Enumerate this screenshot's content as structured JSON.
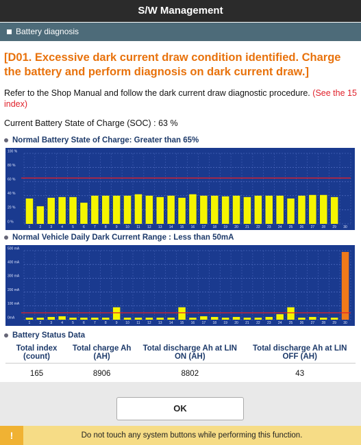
{
  "header": {
    "title": "S/W Management"
  },
  "section": {
    "title": "Battery diagnosis"
  },
  "alert": "[D01. Excessive dark current draw condition identified. Charge the battery and perform diagnosis on dark current draw.]",
  "instruction": {
    "text": "Refer to the Shop Manual and follow the dark current draw diagnostic procedure.",
    "link": "(See the 15 index)"
  },
  "soc": "Current Battery State of Charge (SOC) : 63 %",
  "chart_data": [
    {
      "type": "bar",
      "title": "Normal Battery State of Charge: Greater than 65%",
      "categories": [
        "1",
        "2",
        "3",
        "4",
        "5",
        "6",
        "7",
        "8",
        "9",
        "10",
        "11",
        "12",
        "13",
        "14",
        "15",
        "16",
        "17",
        "18",
        "19",
        "20",
        "21",
        "22",
        "23",
        "24",
        "25",
        "26",
        "27",
        "28",
        "29",
        "30"
      ],
      "values": [
        36,
        25,
        37,
        38,
        38,
        30,
        40,
        40,
        40,
        40,
        42,
        40,
        38,
        40,
        37,
        42,
        40,
        40,
        39,
        40,
        38,
        40,
        40,
        40,
        36,
        40,
        41,
        41,
        38,
        0
      ],
      "color": "#f5f500",
      "ylim": [
        0,
        100
      ],
      "yticks": [
        {
          "value": 0,
          "label": "0 %"
        },
        {
          "value": 20,
          "label": "20 %"
        },
        {
          "value": 40,
          "label": "40 %"
        },
        {
          "value": 60,
          "label": "60 %"
        },
        {
          "value": 80,
          "label": "80 %"
        },
        {
          "value": 100,
          "label": "100 %"
        }
      ],
      "threshold": 65,
      "threshold_color": "#e0202a",
      "grid": true
    },
    {
      "type": "bar",
      "title": "Normal Vehicle Daily Dark Current Range : Less than 50mA",
      "categories": [
        "1",
        "2",
        "3",
        "4",
        "5",
        "6",
        "7",
        "8",
        "9",
        "10",
        "11",
        "12",
        "13",
        "14",
        "15",
        "16",
        "17",
        "18",
        "19",
        "20",
        "21",
        "22",
        "23",
        "24",
        "25",
        "26",
        "27",
        "28",
        "29",
        "30"
      ],
      "values": [
        15,
        15,
        20,
        25,
        15,
        15,
        15,
        15,
        90,
        15,
        15,
        15,
        15,
        15,
        90,
        15,
        25,
        20,
        15,
        20,
        15,
        15,
        20,
        40,
        90,
        15,
        20,
        15,
        15,
        490
      ],
      "colors": [
        "#f5f500",
        "#f5f500",
        "#f5f500",
        "#f5f500",
        "#f5f500",
        "#f5f500",
        "#f5f500",
        "#f5f500",
        "#f5f500",
        "#f5f500",
        "#f5f500",
        "#f5f500",
        "#f5f500",
        "#f5f500",
        "#f5f500",
        "#f5f500",
        "#f5f500",
        "#f5f500",
        "#f5f500",
        "#f5f500",
        "#f5f500",
        "#f5f500",
        "#f5f500",
        "#f5f500",
        "#f5f500",
        "#f5f500",
        "#f5f500",
        "#f5f500",
        "#f5f500",
        "#f07a1a"
      ],
      "ylim": [
        0,
        500
      ],
      "yticks": [
        {
          "value": 0,
          "label": "0mA"
        },
        {
          "value": 100,
          "label": "100 mA"
        },
        {
          "value": 200,
          "label": "200 mA"
        },
        {
          "value": 300,
          "label": "300 mA"
        },
        {
          "value": 400,
          "label": "400 mA"
        },
        {
          "value": 500,
          "label": "500 mA"
        }
      ],
      "threshold": 50,
      "threshold_color": "#e0202a",
      "grid": true
    }
  ],
  "table": {
    "title": "Battery Status Data",
    "headers": [
      "Total index (count)",
      "Total charge Ah (AH)",
      "Total discharge Ah at LIN ON (AH)",
      "Total discharge Ah at LIN OFF (AH)"
    ],
    "rows": [
      [
        "165",
        "8906",
        "8802",
        "43"
      ]
    ]
  },
  "button": "OK",
  "warning": {
    "icon": "!",
    "text": "Do not touch any system buttons while performing this function."
  }
}
